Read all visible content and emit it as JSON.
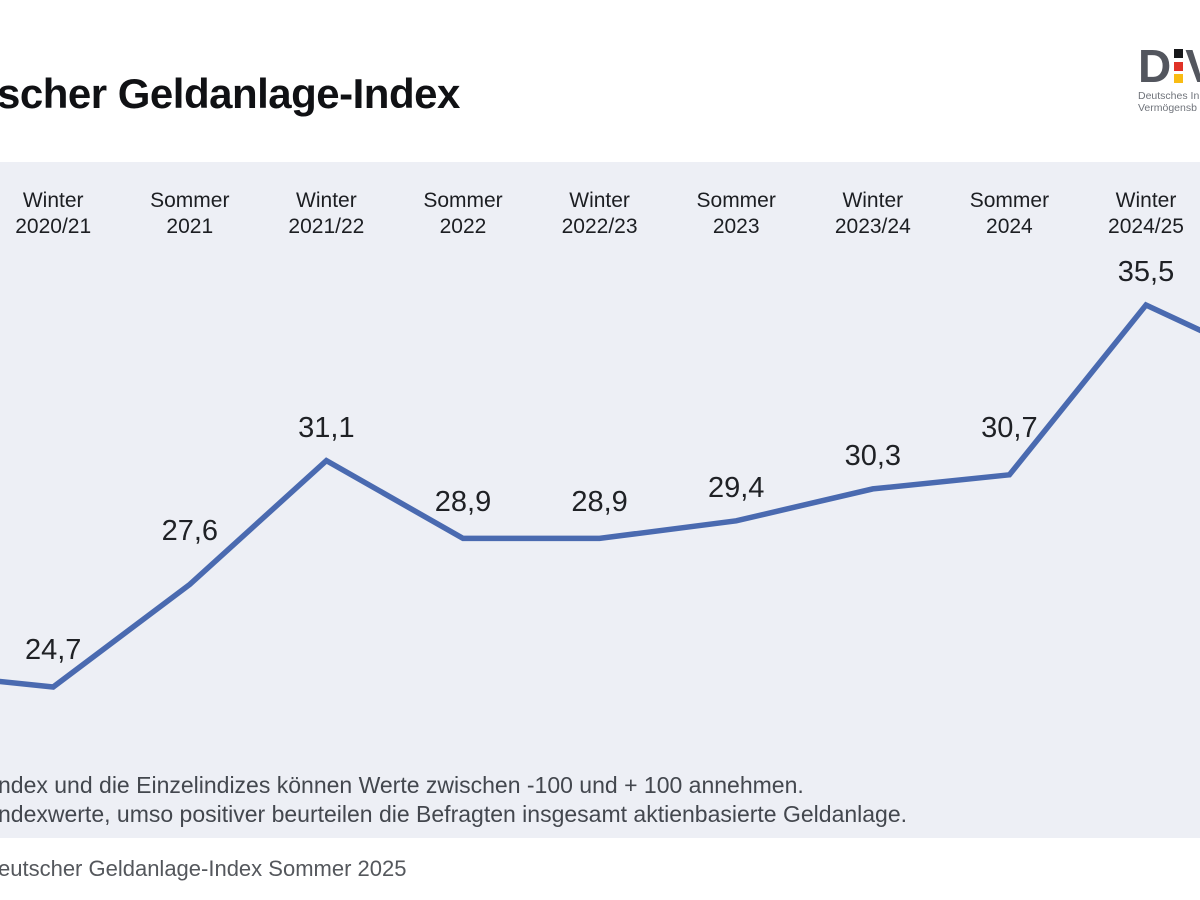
{
  "page": {
    "background": "#ffffff"
  },
  "header": {
    "title_visible": "scher Geldanlage-Index",
    "logo": {
      "letter_left": "D",
      "letter_right": "V",
      "flag_squares": [
        "#17181A",
        "#E03227",
        "#F9BC13"
      ],
      "subtext_line1": "Deutsches In",
      "subtext_line2": "Vermögensb"
    }
  },
  "chart_data": {
    "type": "line",
    "categories": [
      "Winter 2020/21",
      "Sommer 2021",
      "Winter 2021/22",
      "Sommer 2022",
      "Winter 2022/23",
      "Sommer 2023",
      "Winter 2023/24",
      "Sommer 2024",
      "Winter 2024/25"
    ],
    "category_lines": [
      [
        "Winter",
        "2020/21"
      ],
      [
        "Sommer",
        "2021"
      ],
      [
        "Winter",
        "2021/22"
      ],
      [
        "Sommer",
        "2022"
      ],
      [
        "Winter",
        "2022/23"
      ],
      [
        "Sommer",
        "2023"
      ],
      [
        "Winter",
        "2023/24"
      ],
      [
        "Sommer",
        "2024"
      ],
      [
        "Winter",
        "2024/25"
      ]
    ],
    "values": [
      24.7,
      27.6,
      31.1,
      28.9,
      28.9,
      29.4,
      30.3,
      30.7,
      35.5
    ],
    "value_labels": [
      "24,7",
      "27,6",
      "31,1",
      "28,9",
      "28,9",
      "29,4",
      "30,3",
      "30,7",
      "35,5"
    ],
    "series_color": "#4A6AB0",
    "plot_background": "#EDEFF5",
    "grid": "off",
    "legend": "none",
    "value_range_note": [
      -100,
      100
    ],
    "offscreen_continuation": {
      "left_estimate": 25.1,
      "right_estimate": 33.7
    }
  },
  "footer": {
    "note_line1": "ndex und die Einzelindizes können Werte zwischen -100 und + 100 annehmen.",
    "note_line2": "ndexwerte, umso positiver beurteilen die Befragten insgesamt aktienbasierte Geldanlage.",
    "source_visible": "eutscher Geldanlage-Index Sommer 2025"
  }
}
